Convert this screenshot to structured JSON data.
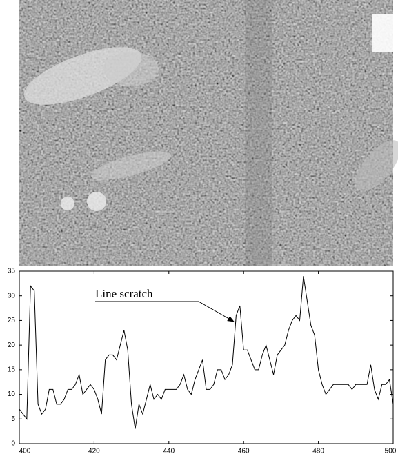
{
  "chart_data": {
    "type": "line",
    "annotation": "Line scratch",
    "x": [
      400,
      401,
      402,
      403,
      404,
      405,
      406,
      407,
      408,
      409,
      410,
      411,
      412,
      413,
      414,
      415,
      416,
      417,
      418,
      419,
      420,
      421,
      422,
      423,
      424,
      425,
      426,
      427,
      428,
      429,
      430,
      431,
      432,
      433,
      434,
      435,
      436,
      437,
      438,
      439,
      440,
      441,
      442,
      443,
      444,
      445,
      446,
      447,
      448,
      449,
      450,
      451,
      452,
      453,
      454,
      455,
      456,
      457,
      458,
      459,
      460,
      461,
      462,
      463,
      464,
      465,
      466,
      467,
      468,
      469,
      470,
      471,
      472,
      473,
      474,
      475,
      476,
      477,
      478,
      479,
      480,
      481,
      482,
      483,
      484,
      485,
      486,
      487,
      488,
      489,
      490,
      491,
      492,
      493,
      494,
      495,
      496,
      497,
      498,
      499,
      500
    ],
    "series": [
      {
        "color": "#000000",
        "values": [
          7,
          6,
          5,
          32,
          31,
          8,
          6,
          7,
          11,
          11,
          8,
          8,
          9,
          11,
          11,
          12,
          14,
          10,
          11,
          12,
          11,
          9,
          6,
          17,
          18,
          18,
          17,
          20,
          23,
          19,
          8,
          3,
          8,
          6,
          9,
          12,
          9,
          10,
          9,
          11,
          11,
          11,
          11,
          12,
          14,
          11,
          10,
          13,
          15,
          17,
          11,
          11,
          12,
          15,
          15,
          13,
          14,
          16,
          26,
          28,
          19,
          19,
          17,
          15,
          15,
          18,
          20,
          17,
          14,
          18,
          19,
          20,
          23,
          25,
          26,
          25,
          34,
          29,
          24,
          22,
          15,
          12,
          10,
          11,
          12,
          12,
          12,
          12,
          12,
          11,
          12,
          12,
          12,
          12,
          16,
          11,
          9,
          12,
          12,
          13,
          8
        ]
      }
    ],
    "xlim": [
      400,
      500
    ],
    "ylim": [
      0,
      35
    ],
    "xticks": [
      400,
      420,
      440,
      460,
      480,
      500
    ],
    "yticks": [
      0,
      5,
      10,
      15,
      20,
      25,
      30,
      35
    ]
  }
}
